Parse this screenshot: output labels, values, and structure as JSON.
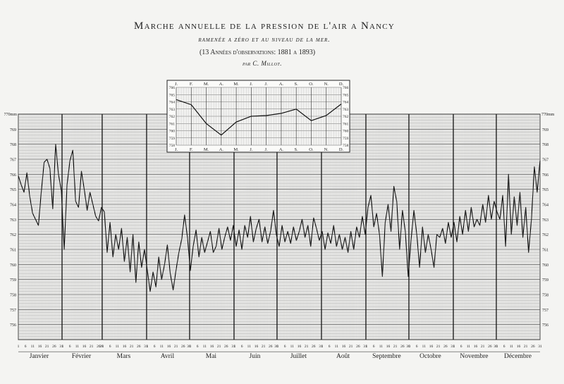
{
  "header": {
    "title": "Marche annuelle de la pression de l'air a Nancy",
    "subtitle": "ramenée a zéro et au niveau de la mer.",
    "period": "(13 Années d'observations: 1881 a 1893)",
    "author": "par C. Millot."
  },
  "chart_data": [
    {
      "type": "line",
      "name": "main-daily-chart",
      "ylabel_unit": "770mm",
      "ylim": [
        755,
        770
      ],
      "y_ticks": [
        756,
        757,
        758,
        759,
        760,
        761,
        762,
        763,
        764,
        765,
        766,
        767,
        768,
        769
      ],
      "months": [
        "Janvier",
        "Février",
        "Mars",
        "Avril",
        "Mai",
        "Juin",
        "Juillet",
        "Août",
        "Septembre",
        "Octobre",
        "Novembre",
        "Décembre"
      ],
      "month_days": [
        31,
        28,
        31,
        30,
        31,
        30,
        31,
        31,
        30,
        31,
        30,
        31
      ],
      "day_ticks": [
        1,
        6,
        11,
        16,
        21,
        26
      ],
      "points": [
        [
          1,
          765.9
        ],
        [
          3,
          765.3
        ],
        [
          5,
          764.8
        ],
        [
          7,
          766.1
        ],
        [
          9,
          764.5
        ],
        [
          11,
          763.4
        ],
        [
          13,
          763.0
        ],
        [
          15,
          762.6
        ],
        [
          17,
          764.8
        ],
        [
          19,
          766.8
        ],
        [
          21,
          767.0
        ],
        [
          23,
          766.4
        ],
        [
          25,
          763.7
        ],
        [
          27,
          768.0
        ],
        [
          29,
          766.0
        ],
        [
          31,
          764.9
        ],
        [
          33,
          761.0
        ],
        [
          35,
          765.3
        ],
        [
          37,
          766.9
        ],
        [
          39,
          767.6
        ],
        [
          41,
          764.2
        ],
        [
          43,
          763.8
        ],
        [
          45,
          766.2
        ],
        [
          47,
          765.0
        ],
        [
          49,
          763.6
        ],
        [
          51,
          764.8
        ],
        [
          53,
          764.0
        ],
        [
          55,
          763.2
        ],
        [
          57,
          762.9
        ],
        [
          59,
          763.8
        ],
        [
          61,
          763.5
        ],
        [
          63,
          760.8
        ],
        [
          65,
          762.8
        ],
        [
          67,
          760.5
        ],
        [
          69,
          762.0
        ],
        [
          71,
          761.0
        ],
        [
          73,
          762.4
        ],
        [
          75,
          760.2
        ],
        [
          77,
          761.8
        ],
        [
          79,
          759.5
        ],
        [
          81,
          762.0
        ],
        [
          83,
          758.8
        ],
        [
          85,
          761.5
        ],
        [
          87,
          759.8
        ],
        [
          89,
          761.0
        ],
        [
          91,
          759.6
        ],
        [
          93,
          758.2
        ],
        [
          95,
          759.5
        ],
        [
          97,
          758.5
        ],
        [
          99,
          760.5
        ],
        [
          101,
          759.0
        ],
        [
          103,
          760.0
        ],
        [
          105,
          761.3
        ],
        [
          107,
          759.4
        ],
        [
          109,
          758.3
        ],
        [
          111,
          759.6
        ],
        [
          113,
          760.8
        ],
        [
          115,
          761.7
        ],
        [
          117,
          763.3
        ],
        [
          119,
          761.8
        ],
        [
          121,
          759.6
        ],
        [
          123,
          761.2
        ],
        [
          125,
          762.3
        ],
        [
          127,
          760.5
        ],
        [
          129,
          761.8
        ],
        [
          131,
          760.8
        ],
        [
          133,
          761.5
        ],
        [
          135,
          762.2
        ],
        [
          137,
          760.8
        ],
        [
          139,
          761.2
        ],
        [
          141,
          762.4
        ],
        [
          143,
          761.0
        ],
        [
          145,
          761.8
        ],
        [
          147,
          762.5
        ],
        [
          149,
          761.6
        ],
        [
          151,
          762.6
        ],
        [
          153,
          761.2
        ],
        [
          155,
          762.3
        ],
        [
          157,
          761.0
        ],
        [
          159,
          762.6
        ],
        [
          161,
          761.8
        ],
        [
          163,
          763.2
        ],
        [
          165,
          761.5
        ],
        [
          167,
          762.4
        ],
        [
          169,
          763.0
        ],
        [
          171,
          761.5
        ],
        [
          173,
          762.5
        ],
        [
          175,
          761.4
        ],
        [
          177,
          762.2
        ],
        [
          179,
          763.6
        ],
        [
          181,
          762.0
        ],
        [
          183,
          761.2
        ],
        [
          185,
          762.6
        ],
        [
          187,
          761.5
        ],
        [
          189,
          762.2
        ],
        [
          191,
          761.4
        ],
        [
          193,
          762.5
        ],
        [
          195,
          761.6
        ],
        [
          197,
          762.2
        ],
        [
          199,
          763.0
        ],
        [
          201,
          761.8
        ],
        [
          203,
          762.6
        ],
        [
          205,
          761.2
        ],
        [
          207,
          763.1
        ],
        [
          209,
          762.4
        ],
        [
          211,
          761.6
        ],
        [
          213,
          762.2
        ],
        [
          215,
          761.0
        ],
        [
          217,
          762.1
        ],
        [
          219,
          761.4
        ],
        [
          221,
          762.6
        ],
        [
          223,
          761.2
        ],
        [
          225,
          762.0
        ],
        [
          227,
          761.0
        ],
        [
          229,
          761.8
        ],
        [
          231,
          760.8
        ],
        [
          233,
          762.2
        ],
        [
          235,
          761.0
        ],
        [
          237,
          762.5
        ],
        [
          239,
          761.8
        ],
        [
          241,
          763.2
        ],
        [
          243,
          762.0
        ],
        [
          245,
          763.8
        ],
        [
          247,
          764.6
        ],
        [
          249,
          762.5
        ],
        [
          251,
          763.4
        ],
        [
          253,
          762.0
        ],
        [
          255,
          759.2
        ],
        [
          257,
          762.8
        ],
        [
          259,
          764.0
        ],
        [
          261,
          762.2
        ],
        [
          263,
          765.2
        ],
        [
          265,
          764.2
        ],
        [
          267,
          761.0
        ],
        [
          269,
          763.6
        ],
        [
          271,
          762.2
        ],
        [
          273,
          759.2
        ],
        [
          275,
          761.6
        ],
        [
          277,
          763.6
        ],
        [
          279,
          762.0
        ],
        [
          281,
          759.8
        ],
        [
          283,
          762.5
        ],
        [
          285,
          760.8
        ],
        [
          287,
          762.0
        ],
        [
          289,
          761.0
        ],
        [
          291,
          759.8
        ],
        [
          293,
          762.0
        ],
        [
          295,
          761.8
        ],
        [
          297,
          762.4
        ],
        [
          299,
          761.4
        ],
        [
          301,
          762.8
        ],
        [
          303,
          761.8
        ],
        [
          305,
          762.8
        ],
        [
          307,
          761.5
        ],
        [
          309,
          763.2
        ],
        [
          311,
          762.0
        ],
        [
          313,
          763.6
        ],
        [
          315,
          762.2
        ],
        [
          317,
          763.8
        ],
        [
          319,
          762.5
        ],
        [
          321,
          763.0
        ],
        [
          323,
          762.6
        ],
        [
          325,
          764.0
        ],
        [
          327,
          762.8
        ],
        [
          329,
          764.6
        ],
        [
          331,
          763.0
        ],
        [
          333,
          764.2
        ],
        [
          335,
          763.5
        ],
        [
          337,
          763.0
        ],
        [
          339,
          764.6
        ],
        [
          341,
          761.2
        ],
        [
          343,
          766.0
        ],
        [
          345,
          762.0
        ],
        [
          347,
          764.5
        ],
        [
          349,
          762.6
        ],
        [
          351,
          764.8
        ],
        [
          353,
          761.8
        ],
        [
          355,
          763.8
        ],
        [
          357,
          760.8
        ],
        [
          359,
          763.0
        ],
        [
          361,
          766.5
        ],
        [
          363,
          764.8
        ],
        [
          365,
          766.9
        ]
      ]
    },
    {
      "type": "line",
      "name": "monthly-inset-chart",
      "categories": [
        "J.",
        "F.",
        "M.",
        "A.",
        "M.",
        "J.",
        "J.",
        "A.",
        "S.",
        "O.",
        "N.",
        "D."
      ],
      "values": [
        764.3,
        763.6,
        761.0,
        759.4,
        761.2,
        762.0,
        762.1,
        762.4,
        763.0,
        761.4,
        762.1,
        763.7
      ],
      "ylim": [
        758,
        766
      ],
      "y_ticks": [
        758,
        759,
        760,
        761,
        762,
        763,
        764,
        765,
        766
      ]
    }
  ]
}
